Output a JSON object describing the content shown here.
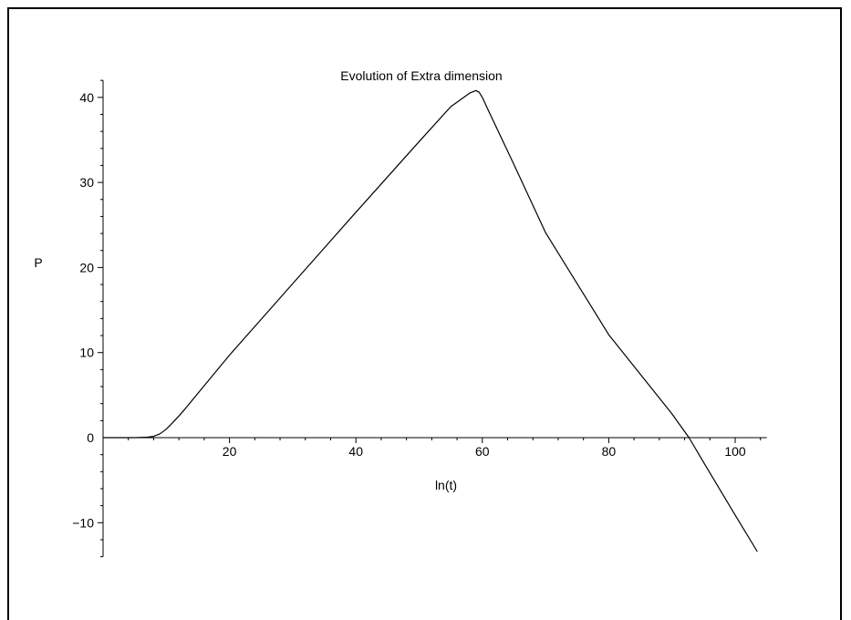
{
  "chart_data": {
    "type": "line",
    "title": "Evolution of Extra dimension",
    "xlabel": "ln(t)",
    "ylabel": "P",
    "xlim": [
      0,
      105
    ],
    "ylim": [
      -14,
      42
    ],
    "x_ticks": [
      20,
      40,
      60,
      80,
      100
    ],
    "y_ticks": [
      -10,
      0,
      10,
      20,
      30,
      40
    ],
    "grid": false,
    "line_color": "#000000",
    "series": [
      {
        "x": [
          0,
          5,
          7,
          8,
          9,
          10,
          11,
          12,
          13,
          14,
          15,
          20,
          30,
          40,
          50,
          55,
          58,
          59,
          59.5,
          60,
          61,
          65,
          70,
          80,
          90,
          92.7,
          95,
          100,
          103.5
        ],
        "y": [
          0,
          0,
          0.05,
          0.15,
          0.45,
          1.0,
          1.75,
          2.55,
          3.4,
          4.3,
          5.2,
          9.7,
          18.1,
          26.5,
          34.8,
          38.9,
          40.5,
          40.8,
          40.6,
          40.0,
          38.4,
          32.1,
          24.1,
          12.1,
          2.8,
          0.0,
          -2.9,
          -9.1,
          -13.4
        ]
      }
    ]
  }
}
